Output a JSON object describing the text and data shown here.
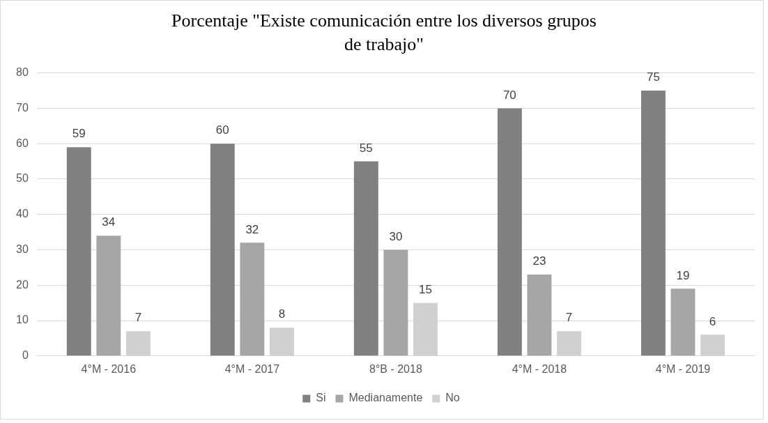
{
  "chart_data": {
    "type": "bar",
    "title": "Porcentaje \"Existe comunicación entre los diversos grupos de trabajo\"",
    "categories": [
      "4°M - 2016",
      "4°M - 2017",
      "8°B - 2018",
      "4°M - 2018",
      "4°M - 2019"
    ],
    "series": [
      {
        "name": "Si",
        "color": "#808080",
        "values": [
          59,
          60,
          55,
          70,
          75
        ]
      },
      {
        "name": "Medianamente",
        "color": "#a6a6a6",
        "values": [
          34,
          32,
          30,
          23,
          19
        ]
      },
      {
        "name": "No",
        "color": "#d0d0d0",
        "values": [
          7,
          8,
          15,
          7,
          6
        ]
      }
    ],
    "ylim": [
      0,
      80
    ],
    "yticks": [
      0,
      10,
      20,
      30,
      40,
      50,
      60,
      70,
      80
    ],
    "grid": "y",
    "legend": "bottom",
    "data_labels": true
  }
}
